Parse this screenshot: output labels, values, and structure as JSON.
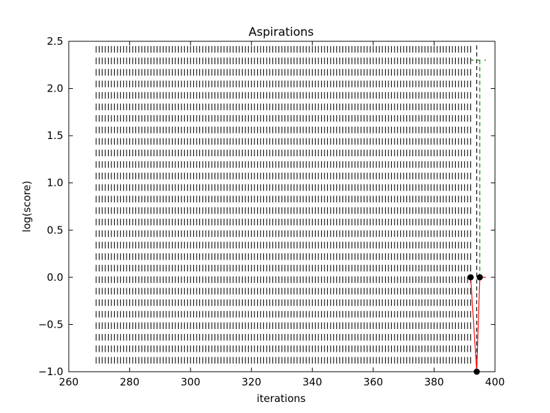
{
  "chart_data": {
    "type": "line",
    "title": "Aspirations",
    "xlabel": "iterations",
    "ylabel": "log(score)",
    "xlim": [
      260,
      400
    ],
    "ylim": [
      -1.0,
      2.5
    ],
    "xticks": [
      "260",
      "280",
      "300",
      "320",
      "340",
      "360",
      "380",
      "400"
    ],
    "yticks": [
      "−1.0",
      "−0.5",
      "0.0",
      "0.5",
      "1.0",
      "1.5",
      "2.0",
      "2.5"
    ],
    "grid": false,
    "colors": {
      "score_line": "#ff0000",
      "markers": "#000000",
      "dash_black": "#000000",
      "dash_green": "#008000",
      "frame": "#000000"
    },
    "score_series": {
      "x": [
        392,
        394,
        395,
        397
      ],
      "y": [
        0.0,
        -1.0,
        0.0,
        0.0
      ]
    },
    "markers": {
      "x": [
        392,
        394,
        395
      ],
      "y": [
        0.0,
        -1.0,
        0.0
      ]
    },
    "bar_field": {
      "x_start": 269,
      "x_end": 392,
      "step": 1,
      "y_start": 2.45,
      "y_step": 0.122,
      "rows": 28,
      "tick_height": 0.07
    },
    "black_dashed_line": {
      "x": 394,
      "y_range": [
        -1.0,
        2.5
      ]
    },
    "green_dashed_series": {
      "x": [
        392,
        393,
        395,
        397
      ],
      "y": [
        2.3,
        2.3,
        2.3,
        2.3
      ],
      "drop": {
        "x": 395,
        "y_range": [
          0.0,
          2.3
        ]
      }
    }
  }
}
